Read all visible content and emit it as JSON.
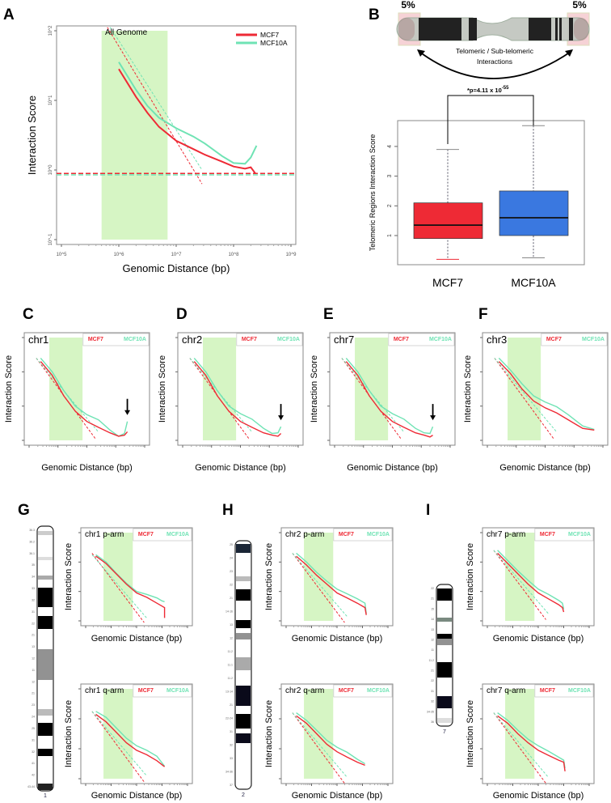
{
  "colors": {
    "mcf7": "#ee2a35",
    "mcf10a": "#6fe3b4",
    "band": "#d6f5c4",
    "mcf10a_box": "#3a78e0"
  },
  "panel_labels": [
    "A",
    "B",
    "C",
    "D",
    "E",
    "F",
    "G",
    "H",
    "I"
  ],
  "schematic": {
    "left_pct": "5%",
    "right_pct": "5%",
    "caption_line1": "Telomeric / Sub-telomeric",
    "caption_line2": "Interactions"
  },
  "chart_data": [
    {
      "id": "A",
      "type": "line",
      "title": "All Genome",
      "xlabel": "Genomic Distance (bp)",
      "ylabel": "Interaction Score",
      "xscale": "log",
      "yscale": "log",
      "xlim_log10": [
        5,
        9
      ],
      "ylim_log10": [
        -1,
        2
      ],
      "xticks": [
        "10^5",
        "10^6",
        "10^7",
        "10^8",
        "10^9"
      ],
      "yticks": [
        "10^2",
        "10^1",
        "10^0",
        "10^-1"
      ],
      "highlight_log10": [
        5.7,
        6.85
      ],
      "legend": {
        "position": "top-right",
        "entries": [
          "MCF7",
          "MCF10A"
        ]
      },
      "series": [
        {
          "name": "MCF7",
          "x_log10": [
            6,
            6.3,
            6.5,
            6.7,
            7,
            7.3,
            7.5,
            7.8,
            8,
            8.2,
            8.3,
            8.38
          ],
          "y_log10": [
            1.45,
            1.05,
            0.82,
            0.62,
            0.42,
            0.3,
            0.22,
            0.12,
            0.05,
            0.02,
            0.04,
            -0.05
          ]
        },
        {
          "name": "MCF10A",
          "x_log10": [
            6,
            6.3,
            6.5,
            6.7,
            7,
            7.3,
            7.5,
            7.8,
            8,
            8.2,
            8.3,
            8.4
          ],
          "y_log10": [
            1.55,
            1.15,
            0.92,
            0.75,
            0.6,
            0.48,
            0.38,
            0.2,
            0.1,
            0.09,
            0.18,
            0.35
          ]
        }
      ],
      "fits": [
        {
          "name": "MCF7",
          "x_log10": [
            5.8,
            7.45
          ],
          "y_log10": [
            2.05,
            -0.2
          ]
        },
        {
          "name": "MCF10A",
          "x_log10": [
            5.85,
            7.45
          ],
          "y_log10": [
            2.05,
            0.0
          ]
        }
      ],
      "baselines_log10": {
        "MCF7": -0.05,
        "MCF10A": -0.07
      }
    },
    {
      "id": "B",
      "type": "box",
      "ylabel": "Telomeric Regions Interaction Score",
      "categories": [
        "MCF7",
        "MCF10A"
      ],
      "yticks": [
        1,
        2,
        3,
        4
      ],
      "ylim": [
        0,
        4.9
      ],
      "annotation": {
        "prefix": "*p=4.11 x 10",
        "exponent": "-55"
      },
      "boxes": [
        {
          "name": "MCF7",
          "whisker_low": 0.2,
          "q1": 0.9,
          "median": 1.35,
          "q3": 2.1,
          "whisker_high": 3.9
        },
        {
          "name": "MCF10A",
          "whisker_low": 0.25,
          "q1": 1.0,
          "median": 1.6,
          "q3": 2.5,
          "whisker_high": 4.7
        }
      ]
    },
    {
      "id": "C",
      "type": "line",
      "title": "chr1",
      "arrow_log10": 8.4,
      "xlabel": "Genomic Distance (bp)",
      "ylabel": "Interaction Score",
      "legend": {
        "position": "top-right",
        "entries": [
          "MCF7",
          "MCF10A"
        ]
      },
      "series": [
        {
          "name": "MCF7",
          "x_log10": [
            5.4,
            5.8,
            6.2,
            6.6,
            7,
            7.4,
            7.8,
            8.1,
            8.3,
            8.4
          ],
          "y_log10": [
            2.3,
            1.9,
            1.3,
            0.85,
            0.55,
            0.38,
            0.22,
            0.12,
            0.15,
            0.25
          ]
        },
        {
          "name": "MCF10A",
          "x_log10": [
            5.4,
            5.8,
            6.2,
            6.6,
            7,
            7.4,
            7.8,
            8.1,
            8.3,
            8.4
          ],
          "y_log10": [
            2.4,
            2.0,
            1.45,
            1.0,
            0.75,
            0.6,
            0.3,
            0.12,
            0.2,
            0.55
          ]
        }
      ]
    },
    {
      "id": "D",
      "type": "line",
      "title": "chr2",
      "arrow_log10": 8.4,
      "xlabel": "Genomic Distance (bp)",
      "ylabel": "Interaction Score",
      "legend": {
        "position": "top-right",
        "entries": [
          "MCF7",
          "MCF10A"
        ]
      },
      "series": [
        {
          "name": "MCF7",
          "x_log10": [
            5.4,
            5.8,
            6.2,
            6.6,
            7,
            7.4,
            7.8,
            8.1,
            8.3,
            8.4
          ],
          "y_log10": [
            2.3,
            1.9,
            1.3,
            0.85,
            0.55,
            0.38,
            0.22,
            0.15,
            0.12,
            0.2
          ]
        },
        {
          "name": "MCF10A",
          "x_log10": [
            5.4,
            5.8,
            6.2,
            6.6,
            7,
            7.4,
            7.8,
            8.1,
            8.3,
            8.4
          ],
          "y_log10": [
            2.4,
            2.0,
            1.45,
            1.0,
            0.78,
            0.62,
            0.35,
            0.2,
            0.22,
            0.4
          ]
        }
      ]
    },
    {
      "id": "E",
      "type": "line",
      "title": "chr7",
      "arrow_log10": 8.4,
      "xlabel": "Genomic Distance (bp)",
      "ylabel": "Interaction Score",
      "legend": {
        "position": "top-right",
        "entries": [
          "MCF7",
          "MCF10A"
        ]
      },
      "series": [
        {
          "name": "MCF7",
          "x_log10": [
            5.4,
            5.8,
            6.2,
            6.6,
            7,
            7.4,
            7.8,
            8.1,
            8.3,
            8.4
          ],
          "y_log10": [
            2.3,
            1.9,
            1.3,
            0.85,
            0.55,
            0.38,
            0.22,
            0.15,
            0.1,
            0.15
          ]
        },
        {
          "name": "MCF10A",
          "x_log10": [
            5.4,
            5.8,
            6.2,
            6.6,
            7,
            7.4,
            7.8,
            8.1,
            8.3,
            8.4
          ],
          "y_log10": [
            2.4,
            2.0,
            1.45,
            1.0,
            0.78,
            0.62,
            0.35,
            0.22,
            0.2,
            0.4
          ]
        }
      ]
    },
    {
      "id": "F",
      "type": "line",
      "title": "chr3",
      "xlabel": "Genomic Distance (bp)",
      "ylabel": "Interaction Score",
      "legend": {
        "position": "top-right",
        "entries": [
          "MCF7",
          "MCF10A"
        ]
      },
      "series": [
        {
          "name": "MCF7",
          "x_log10": [
            5.4,
            5.8,
            6.2,
            6.6,
            7,
            7.4,
            7.8,
            8.1,
            8.3,
            8.7
          ],
          "y_log10": [
            2.3,
            1.95,
            1.5,
            1.15,
            0.95,
            0.8,
            0.6,
            0.45,
            0.35,
            0.3
          ]
        },
        {
          "name": "MCF10A",
          "x_log10": [
            5.4,
            5.8,
            6.2,
            6.6,
            7,
            7.4,
            7.8,
            8.1,
            8.3,
            8.7
          ],
          "y_log10": [
            2.4,
            2.05,
            1.65,
            1.3,
            1.12,
            0.98,
            0.75,
            0.55,
            0.42,
            0.32
          ]
        }
      ]
    },
    {
      "id": "G-p",
      "type": "line",
      "title": "chr1 p-arm",
      "xlabel": "Genomic Distance (bp)",
      "ylabel": "Interaction Score",
      "legend": {
        "position": "top-right",
        "entries": [
          "MCF7",
          "MCF10A"
        ]
      },
      "series": [
        {
          "name": "MCF7",
          "x_log10": [
            5.4,
            5.8,
            6.2,
            6.6,
            7,
            7.4,
            7.8,
            8.0,
            8.1,
            8.1
          ],
          "y_log10": [
            2.2,
            1.95,
            1.6,
            1.25,
            0.95,
            0.8,
            0.6,
            0.5,
            0.45,
            0.1
          ]
        },
        {
          "name": "MCF10A",
          "x_log10": [
            5.4,
            5.8,
            6.2,
            6.6,
            7,
            7.4,
            7.8,
            8.0,
            8.1
          ],
          "y_log10": [
            2.25,
            2.0,
            1.62,
            1.28,
            1.0,
            0.9,
            0.78,
            0.68,
            0.65
          ]
        }
      ]
    },
    {
      "id": "G-q",
      "type": "line",
      "title": "chr1 q-arm",
      "xlabel": "Genomic Distance (bp)",
      "ylabel": "Interaction Score",
      "legend": {
        "position": "top-right",
        "entries": [
          "MCF7",
          "MCF10A"
        ]
      },
      "series": [
        {
          "name": "MCF7",
          "x_log10": [
            5.4,
            5.8,
            6.2,
            6.6,
            7,
            7.4,
            7.8,
            8.1
          ],
          "y_log10": [
            2.15,
            1.9,
            1.55,
            1.2,
            0.95,
            0.8,
            0.6,
            0.4
          ]
        },
        {
          "name": "MCF10A",
          "x_log10": [
            5.4,
            5.8,
            6.2,
            6.6,
            7,
            7.4,
            7.8,
            8.1
          ],
          "y_log10": [
            2.25,
            2.05,
            1.7,
            1.35,
            1.1,
            0.95,
            0.75,
            0.42
          ]
        }
      ]
    },
    {
      "id": "H-p",
      "type": "line",
      "title": "chr2 p-arm",
      "xlabel": "Genomic Distance (bp)",
      "ylabel": "Interaction Score",
      "legend": {
        "position": "top-right",
        "entries": [
          "MCF7",
          "MCF10A"
        ]
      },
      "series": [
        {
          "name": "MCF7",
          "x_log10": [
            5.4,
            5.8,
            6.2,
            6.6,
            7,
            7.4,
            7.8,
            8.1,
            8.15
          ],
          "y_log10": [
            2.2,
            1.9,
            1.55,
            1.25,
            0.95,
            0.78,
            0.6,
            0.45,
            0.2
          ]
        },
        {
          "name": "MCF10A",
          "x_log10": [
            5.4,
            5.8,
            6.2,
            6.6,
            7,
            7.4,
            7.8,
            8.1,
            8.15
          ],
          "y_log10": [
            2.3,
            2.0,
            1.65,
            1.35,
            1.08,
            0.92,
            0.75,
            0.6,
            0.25
          ]
        }
      ]
    },
    {
      "id": "H-q",
      "type": "line",
      "title": "chr2 q-arm",
      "xlabel": "Genomic Distance (bp)",
      "ylabel": "Interaction Score",
      "legend": {
        "position": "top-right",
        "entries": [
          "MCF7",
          "MCF10A"
        ]
      },
      "series": [
        {
          "name": "MCF7",
          "x_log10": [
            5.4,
            5.8,
            6.2,
            6.6,
            7,
            7.4,
            7.8,
            8.1
          ],
          "y_log10": [
            2.1,
            1.85,
            1.5,
            1.15,
            0.9,
            0.72,
            0.55,
            0.45
          ]
        },
        {
          "name": "MCF10A",
          "x_log10": [
            5.4,
            5.8,
            6.2,
            6.6,
            7,
            7.4,
            7.8,
            8.1
          ],
          "y_log10": [
            2.2,
            1.95,
            1.62,
            1.28,
            1.05,
            0.88,
            0.65,
            0.5
          ]
        }
      ]
    },
    {
      "id": "I-p",
      "type": "line",
      "title": "chr7 p-arm",
      "xlabel": "Genomic Distance (bp)",
      "ylabel": "Interaction Score",
      "legend": {
        "position": "top-right",
        "entries": [
          "MCF7",
          "MCF10A"
        ]
      },
      "series": [
        {
          "name": "MCF7",
          "x_log10": [
            5.4,
            5.8,
            6.2,
            6.6,
            7,
            7.4,
            7.8,
            7.95,
            8.0
          ],
          "y_log10": [
            2.3,
            1.95,
            1.6,
            1.25,
            0.95,
            0.75,
            0.55,
            0.45,
            0.3
          ]
        },
        {
          "name": "MCF10A",
          "x_log10": [
            5.4,
            5.8,
            6.2,
            6.6,
            7,
            7.4,
            7.8,
            7.95,
            8.0
          ],
          "y_log10": [
            2.4,
            2.05,
            1.7,
            1.38,
            1.08,
            0.9,
            0.7,
            0.6,
            0.4
          ]
        }
      ]
    },
    {
      "id": "I-q",
      "type": "line",
      "title": "chr7 q-arm",
      "xlabel": "Genomic Distance (bp)",
      "ylabel": "Interaction Score",
      "legend": {
        "position": "top-right",
        "entries": [
          "MCF7",
          "MCF10A"
        ]
      },
      "series": [
        {
          "name": "MCF7",
          "x_log10": [
            5.4,
            5.8,
            6.2,
            6.6,
            7,
            7.4,
            7.8,
            8.0,
            8.05
          ],
          "y_log10": [
            2.1,
            1.85,
            1.5,
            1.2,
            0.95,
            0.78,
            0.62,
            0.55,
            0.25
          ]
        },
        {
          "name": "MCF10A",
          "x_log10": [
            5.4,
            5.8,
            6.2,
            6.6,
            7,
            7.4,
            7.8,
            8.0,
            8.05
          ],
          "y_log10": [
            2.2,
            1.95,
            1.62,
            1.32,
            1.1,
            0.92,
            0.72,
            0.62,
            0.35
          ]
        }
      ]
    }
  ],
  "ideograms": [
    {
      "name": "1",
      "band_labels": [
        "36.3",
        "36.2",
        "36.1",
        "35",
        "34",
        "33",
        "32",
        "31",
        "22",
        "21",
        "13",
        "12",
        "11",
        "12",
        "21",
        "23",
        "24",
        "25",
        "31",
        "32",
        "41",
        "42",
        "43-44"
      ]
    },
    {
      "name": "2",
      "band_labels": [
        "25",
        "24",
        "23",
        "22",
        "21",
        "14-16",
        "13",
        "12",
        "11.2",
        "11.1",
        "11.2",
        "13-14",
        "21",
        "22-24",
        "31",
        "32",
        "33",
        "34-36",
        "37"
      ]
    },
    {
      "name": "7",
      "band_labels": [
        "22",
        "21",
        "15",
        "14",
        "13",
        "12",
        "11",
        "11.2",
        "21",
        "22",
        "31",
        "32",
        "34-35",
        "36"
      ]
    }
  ]
}
